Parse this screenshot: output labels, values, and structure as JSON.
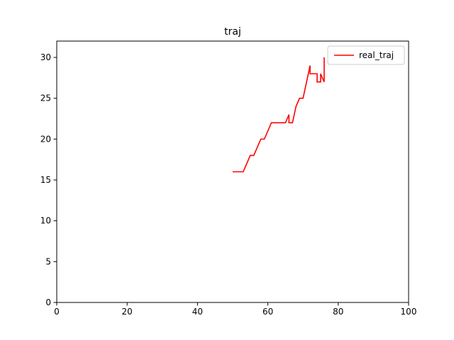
{
  "chart_data": {
    "type": "line",
    "title": "traj",
    "xlabel": "",
    "ylabel": "",
    "xlim": [
      0,
      100
    ],
    "ylim": [
      0,
      32
    ],
    "xticks": [
      0,
      20,
      40,
      60,
      80,
      100
    ],
    "yticks": [
      0,
      5,
      10,
      15,
      20,
      25,
      30
    ],
    "grid": false,
    "legend_position": "top-right",
    "series": [
      {
        "name": "real_traj",
        "color": "#ff0000",
        "x": [
          50,
          53,
          55,
          56,
          58,
          59,
          61,
          65,
          66,
          66,
          67,
          68,
          69,
          70,
          72,
          72,
          74,
          74,
          75,
          75,
          76,
          76
        ],
        "y": [
          16,
          16,
          18,
          18,
          20,
          20,
          22,
          22,
          23,
          22,
          22,
          24,
          25,
          25,
          29,
          28,
          28,
          27,
          27,
          28,
          27,
          30
        ]
      }
    ]
  }
}
